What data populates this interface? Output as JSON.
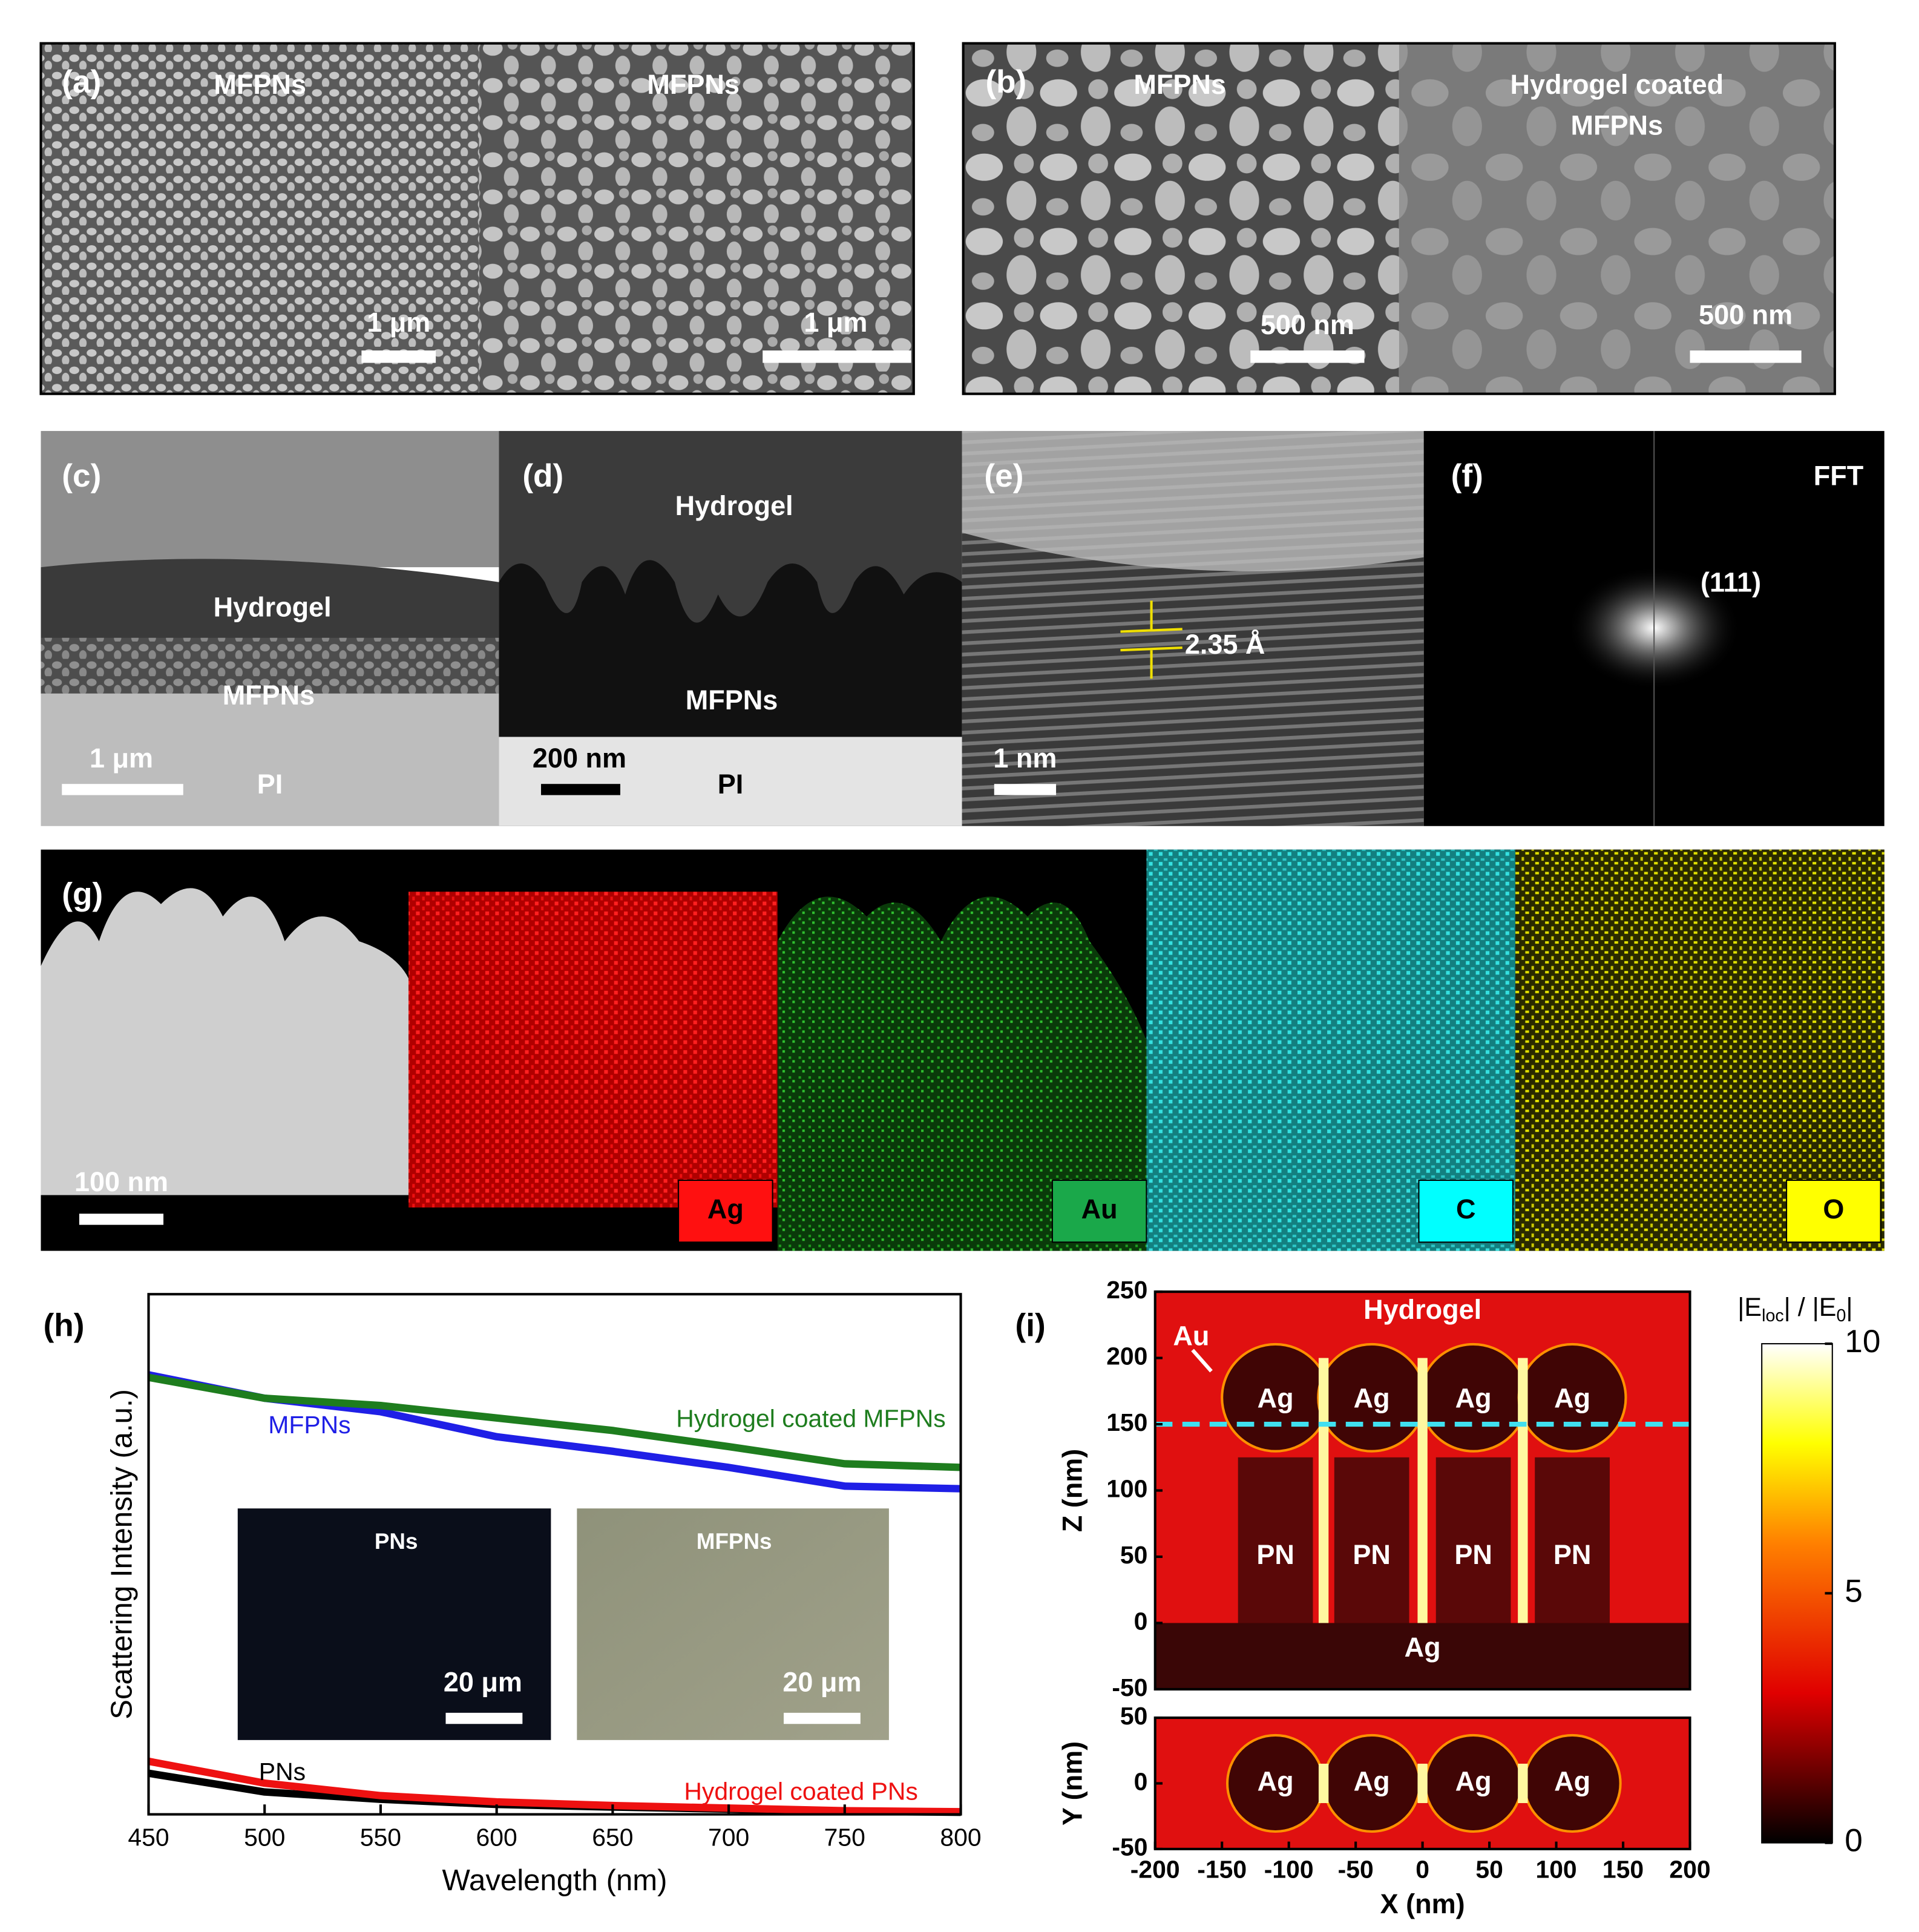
{
  "panels": {
    "a": {
      "label": "(a)",
      "texts": [
        "MFPNs",
        "MFPNs"
      ],
      "scale_bars": [
        "1 μm",
        "1 μm"
      ]
    },
    "b": {
      "label": "(b)",
      "texts": [
        "MFPNs",
        "Hydrogel coated",
        "MFPNs"
      ],
      "scale_bars": [
        "500 nm",
        "500 nm"
      ]
    },
    "c": {
      "label": "(c)",
      "texts": [
        "Hydrogel",
        "MFPNs",
        "PI"
      ],
      "scale_bars": [
        "1 μm"
      ]
    },
    "d": {
      "label": "(d)",
      "texts": [
        "Hydrogel",
        "MFPNs",
        "PI"
      ],
      "scale_bars": [
        "200 nm"
      ]
    },
    "e": {
      "label": "(e)",
      "texts": [
        "2.35 Å"
      ],
      "scale_bars": [
        "1 nm"
      ]
    },
    "f": {
      "label": "(f)",
      "texts": [
        "FFT",
        "(111)"
      ]
    },
    "g": {
      "label": "(g)",
      "texts": [
        "Ag",
        "Au",
        "C",
        "O"
      ],
      "scale_bars": [
        "100 nm"
      ]
    },
    "h": {
      "label": "(h)"
    },
    "i": {
      "label": "(i)"
    }
  },
  "chart_data": [
    {
      "type": "line",
      "xlabel": "Wavelength (nm)",
      "ylabel": "Scattering Intensity (a.u.)",
      "x": [
        450,
        500,
        550,
        600,
        650,
        700,
        750,
        800
      ],
      "xlim": [
        450,
        800
      ],
      "xticks": [
        450,
        500,
        550,
        600,
        650,
        700,
        750,
        800
      ],
      "ylim": [
        0,
        1
      ],
      "series": [
        {
          "name": "MFPNs",
          "color": "#1f1fe6",
          "values": [
            0.845,
            0.8,
            0.774,
            0.726,
            0.698,
            0.667,
            0.631,
            0.626
          ]
        },
        {
          "name": "Hydrogel coated MFPNs",
          "color": "#1e7d1e",
          "values": [
            0.84,
            0.8,
            0.786,
            0.762,
            0.738,
            0.707,
            0.674,
            0.667
          ]
        },
        {
          "name": "PNs",
          "color": "#000000",
          "values": [
            0.079,
            0.043,
            0.029,
            0.019,
            0.014,
            0.01,
            0.006,
            0.004
          ]
        },
        {
          "name": "Hydrogel coated PNs",
          "color": "#ee1111",
          "values": [
            0.102,
            0.06,
            0.036,
            0.024,
            0.017,
            0.012,
            0.007,
            0.005
          ]
        }
      ],
      "insets": [
        {
          "label": "PNs",
          "scale_bar": "20 μm"
        },
        {
          "label": "MFPNs",
          "scale_bar": "20 μm"
        }
      ]
    },
    {
      "type": "heatmap",
      "xlabel": "X (nm)",
      "ylabel": "Z (nm)",
      "xlim": [
        -200,
        200
      ],
      "xticks": [
        -200,
        -150,
        -100,
        -50,
        0,
        50,
        100,
        150,
        200
      ],
      "ylim": [
        -50,
        250
      ],
      "yticks": [
        -50,
        0,
        50,
        100,
        150,
        200,
        250
      ],
      "annotations": [
        "Hydrogel",
        "Au",
        "Ag",
        "Ag",
        "Ag",
        "Ag",
        "PN",
        "PN",
        "PN",
        "PN",
        "Ag"
      ],
      "section": {
        "ylabel": "Y (nm)",
        "ylim": [
          -50,
          50
        ],
        "yticks": [
          -50,
          0,
          50
        ],
        "annotations": [
          "Ag",
          "Ag",
          "Ag",
          "Ag"
        ]
      },
      "colorbar": {
        "label_parts": [
          "|E",
          "loc",
          "| / |E",
          "0",
          "|"
        ],
        "lim": [
          0,
          10
        ],
        "ticks": [
          0,
          5,
          10
        ]
      }
    }
  ]
}
